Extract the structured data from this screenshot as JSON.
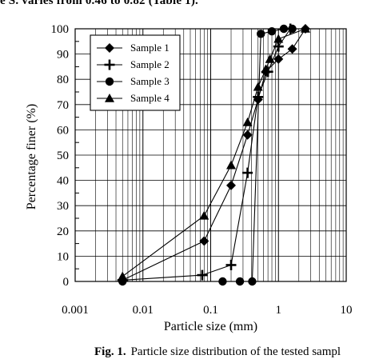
{
  "page": {
    "top_text": "e S. varies from 0.46 to 0.82 (Table 1).",
    "caption_label": "Fig. 1.",
    "caption_text": "Particle size distribution of the tested sampl"
  },
  "chart_data": {
    "type": "scatter",
    "title": "",
    "xlabel": "Particle size (mm)",
    "ylabel": "Percentage finer (%)",
    "xscale": "log",
    "xlim": [
      0.001,
      10
    ],
    "ylim": [
      0,
      100
    ],
    "x_ticks": [
      0.001,
      0.01,
      0.1,
      1,
      10
    ],
    "x_tick_labels": [
      "0.001",
      "0.01",
      "0.1",
      "1",
      "10"
    ],
    "y_ticks": [
      0,
      10,
      20,
      30,
      40,
      50,
      60,
      70,
      80,
      90,
      100
    ],
    "y_tick_labels": [
      "0",
      "10",
      "20",
      "30",
      "40",
      "50",
      "60",
      "70",
      "80",
      "90",
      "100"
    ],
    "grid": true,
    "legend_position": "top-left",
    "series": [
      {
        "name": "Sample 1",
        "marker": "diamond",
        "x": [
          0.005,
          0.08,
          0.2,
          0.35,
          0.5,
          0.65,
          1.0,
          1.6,
          2.5
        ],
        "y": [
          0.5,
          16,
          38,
          58,
          72,
          83,
          88,
          92,
          100
        ]
      },
      {
        "name": "Sample 2",
        "marker": "plus",
        "x": [
          0.005,
          0.075,
          0.2,
          0.35,
          0.5,
          0.7,
          1.0,
          1.5
        ],
        "y": [
          0.5,
          2.5,
          6.5,
          43,
          73,
          83,
          93,
          100
        ]
      },
      {
        "name": "Sample 3",
        "marker": "circle",
        "x": [
          0.005,
          0.15,
          0.27,
          0.41,
          0.55,
          0.8,
          1.2,
          1.6
        ],
        "y": [
          0,
          0,
          0,
          0,
          98,
          99,
          100,
          100
        ]
      },
      {
        "name": "Sample 4",
        "marker": "triangle",
        "x": [
          0.005,
          0.08,
          0.2,
          0.35,
          0.5,
          0.65,
          0.75,
          1.0,
          2.5
        ],
        "y": [
          2,
          26,
          46,
          63,
          77,
          84,
          88,
          96,
          100
        ]
      }
    ]
  }
}
